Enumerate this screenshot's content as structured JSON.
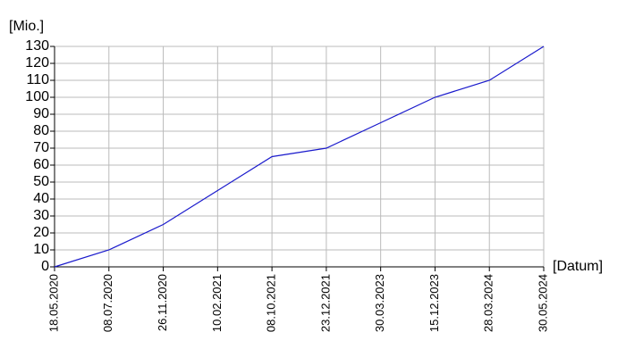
{
  "chart_data": {
    "type": "line",
    "y_label": "[Mio.]",
    "x_label": "[Datum]",
    "categories": [
      "18.05.2020",
      "08.07.2020",
      "26.11.2020",
      "10.02.2021",
      "08.10.2021",
      "23.12.2021",
      "30.03.2023",
      "15.12.2023",
      "28.03.2024",
      "30.05.2024"
    ],
    "series": [
      {
        "color": "#1a1acc",
        "values": [
          0,
          10,
          25,
          45,
          65,
          70,
          85,
          100,
          110,
          130
        ]
      }
    ],
    "ylim": [
      0,
      130
    ],
    "yticks": [
      0,
      10,
      20,
      30,
      40,
      50,
      60,
      70,
      80,
      90,
      100,
      110,
      120,
      130
    ],
    "grid": true
  }
}
